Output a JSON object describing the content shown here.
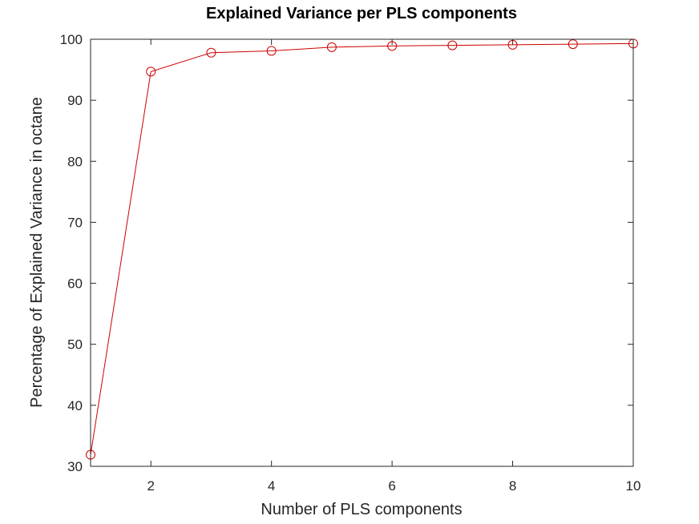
{
  "chart_data": {
    "type": "line",
    "title": "Explained Variance per PLS components",
    "xlabel": "Number of PLS components",
    "ylabel": "Percentage of Explained Variance in octane",
    "xlim": [
      1,
      10
    ],
    "ylim": [
      30,
      100
    ],
    "xticks": [
      2,
      4,
      6,
      8,
      10
    ],
    "yticks": [
      30,
      40,
      50,
      60,
      70,
      80,
      90,
      100
    ],
    "grid": false,
    "box": true,
    "marker": "circle-open",
    "series": [
      {
        "color": "#cc0000",
        "x": [
          1,
          2,
          3,
          4,
          5,
          6,
          7,
          8,
          9,
          10
        ],
        "values": [
          31.9,
          94.7,
          97.8,
          98.1,
          98.7,
          98.9,
          99.0,
          99.1,
          99.2,
          99.3
        ]
      }
    ]
  }
}
